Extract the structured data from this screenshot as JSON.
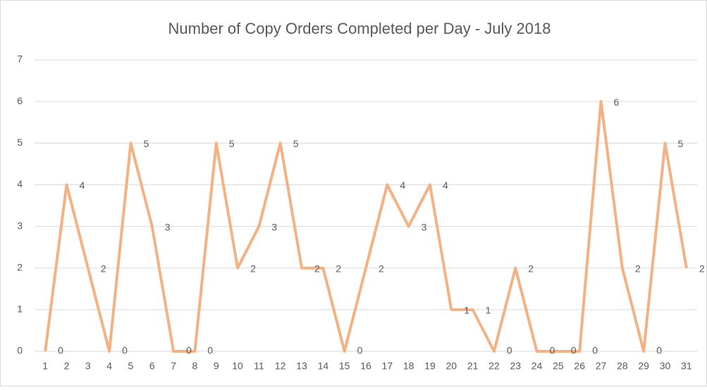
{
  "chart_data": {
    "type": "line",
    "title": "Number of Copy Orders Completed per Day - July 2018",
    "categories": [
      "1",
      "2",
      "3",
      "4",
      "5",
      "6",
      "7",
      "8",
      "9",
      "10",
      "11",
      "12",
      "13",
      "14",
      "15",
      "16",
      "17",
      "18",
      "19",
      "20",
      "21",
      "22",
      "23",
      "24",
      "25",
      "26",
      "27",
      "28",
      "29",
      "30",
      "31"
    ],
    "values": [
      0,
      4,
      2,
      0,
      5,
      3,
      0,
      0,
      5,
      2,
      3,
      5,
      2,
      2,
      0,
      2,
      4,
      3,
      4,
      1,
      1,
      0,
      2,
      0,
      0,
      0,
      6,
      2,
      0,
      5,
      2
    ],
    "color": "#f4b183",
    "ylim": [
      0,
      7
    ],
    "yticks": [
      0,
      1,
      2,
      3,
      4,
      5,
      6,
      7
    ],
    "grid": true
  }
}
